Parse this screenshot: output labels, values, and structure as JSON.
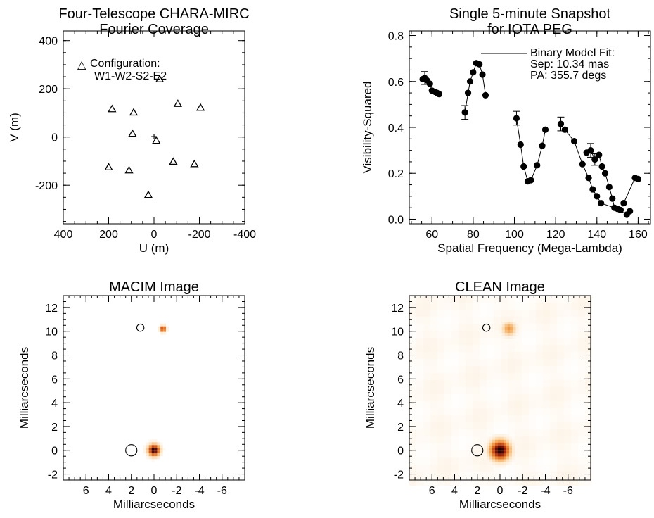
{
  "chart_data": [
    {
      "id": "uv",
      "type": "scatter",
      "title_lines": [
        "Four-Telescope CHARA-MIRC",
        "Fourier Coverage"
      ],
      "xlabel": "U (m)",
      "ylabel": "V (m)",
      "xlim": [
        400,
        -400
      ],
      "ylim": [
        -360,
        440
      ],
      "xticks": [
        400,
        200,
        0,
        -200,
        -400
      ],
      "yticks": [
        400,
        200,
        0,
        -200
      ],
      "legend_marker": "△",
      "legend_lines": [
        "Configuration:",
        "W1-W2-S2-E2"
      ],
      "legend_position": "top-left",
      "center_marker": "+",
      "center": [
        0,
        0
      ],
      "points": [
        {
          "u": -25,
          "v": 240
        },
        {
          "u": -105,
          "v": 138
        },
        {
          "u": -205,
          "v": 122
        },
        {
          "u": 185,
          "v": 116
        },
        {
          "u": 90,
          "v": 102
        },
        {
          "u": 95,
          "v": 14
        },
        {
          "u": -10,
          "v": -15
        },
        {
          "u": -85,
          "v": -102
        },
        {
          "u": -178,
          "v": -112
        },
        {
          "u": 200,
          "v": -125
        },
        {
          "u": 110,
          "v": -138
        },
        {
          "u": 25,
          "v": -240
        }
      ]
    },
    {
      "id": "vis",
      "type": "scatter",
      "title_lines": [
        "Single 5-minute Snapshot",
        "for IOTA PEG"
      ],
      "xlabel": "Spatial Frequency (Mega-Lambda)",
      "ylabel": "Visibility-Squared",
      "xlim": [
        49,
        166
      ],
      "ylim": [
        -0.02,
        0.82
      ],
      "xticks": [
        60,
        80,
        100,
        120,
        140,
        160
      ],
      "yticks": [
        0.0,
        0.2,
        0.4,
        0.6,
        0.8
      ],
      "ytick_labels": [
        "0.0",
        "0.2",
        "0.4",
        "0.6",
        "0.8"
      ],
      "legend_lines": [
        "Binary Model Fit:",
        "Sep: 10.34 mas",
        "PA: 355.7 degs"
      ],
      "legend_position": "top-right",
      "points": [
        [
          55.5,
          0.61
        ],
        [
          56.5,
          0.615
        ],
        [
          57.5,
          0.605
        ],
        [
          59,
          0.59
        ],
        [
          60,
          0.56
        ],
        [
          61.5,
          0.555
        ],
        [
          62.5,
          0.55
        ],
        [
          63.5,
          0.545
        ],
        [
          76,
          0.465
        ],
        [
          77.5,
          0.55
        ],
        [
          78.5,
          0.6
        ],
        [
          80,
          0.64
        ],
        [
          81.5,
          0.68
        ],
        [
          83,
          0.675
        ],
        [
          84.5,
          0.63
        ],
        [
          86,
          0.54
        ],
        [
          101,
          0.44
        ],
        [
          103,
          0.325
        ],
        [
          104.5,
          0.23
        ],
        [
          106.5,
          0.165
        ],
        [
          108,
          0.17
        ],
        [
          111,
          0.235
        ],
        [
          113.5,
          0.32
        ],
        [
          115,
          0.39
        ],
        [
          122.5,
          0.415
        ],
        [
          124.5,
          0.39
        ],
        [
          129,
          0.34
        ],
        [
          133,
          0.24
        ],
        [
          135,
          0.29
        ],
        [
          136,
          0.18
        ],
        [
          137,
          0.3
        ],
        [
          138,
          0.13
        ],
        [
          139,
          0.26
        ],
        [
          140,
          0.1
        ],
        [
          141,
          0.28
        ],
        [
          142,
          0.07
        ],
        [
          142.5,
          0.23
        ],
        [
          144,
          0.2
        ],
        [
          146,
          0.14
        ],
        [
          147.5,
          0.09
        ],
        [
          148.5,
          0.05
        ],
        [
          150,
          0.045
        ],
        [
          151.5,
          0.04
        ],
        [
          153,
          0.07
        ],
        [
          154.5,
          0.02
        ],
        [
          156,
          0.035
        ],
        [
          158.5,
          0.18
        ],
        [
          160,
          0.175
        ]
      ],
      "error_bars": [
        [
          56.5,
          0.615,
          0.028
        ],
        [
          76,
          0.465,
          0.03
        ],
        [
          101,
          0.44,
          0.03
        ],
        [
          122.5,
          0.415,
          0.03
        ],
        [
          137,
          0.3,
          0.03
        ],
        [
          139,
          0.26,
          0.025
        ]
      ],
      "model_segments": [
        [
          [
            55.5,
            0.61
          ],
          [
            56.5,
            0.615
          ],
          [
            57.5,
            0.605
          ],
          [
            59,
            0.59
          ],
          [
            60,
            0.56
          ],
          [
            61.5,
            0.555
          ],
          [
            62.5,
            0.55
          ],
          [
            63.5,
            0.545
          ]
        ],
        [
          [
            76,
            0.465
          ],
          [
            77.5,
            0.55
          ],
          [
            78.5,
            0.6
          ],
          [
            80,
            0.64
          ],
          [
            81.5,
            0.68
          ],
          [
            83,
            0.675
          ],
          [
            84.5,
            0.63
          ],
          [
            86,
            0.54
          ]
        ],
        [
          [
            101,
            0.44
          ],
          [
            103,
            0.325
          ],
          [
            104.5,
            0.23
          ],
          [
            106.5,
            0.165
          ],
          [
            108,
            0.17
          ],
          [
            111,
            0.235
          ],
          [
            113.5,
            0.32
          ],
          [
            115,
            0.39
          ]
        ],
        [
          [
            122.5,
            0.415
          ],
          [
            124.5,
            0.39
          ],
          [
            129,
            0.34
          ],
          [
            133,
            0.24
          ],
          [
            136,
            0.18
          ],
          [
            138,
            0.13
          ],
          [
            140,
            0.1
          ],
          [
            142,
            0.07
          ],
          [
            150,
            0.045
          ],
          [
            154.5,
            0.02
          ],
          [
            156,
            0.035
          ]
        ],
        [
          [
            137,
            0.3
          ],
          [
            139,
            0.26
          ],
          [
            141,
            0.28
          ],
          [
            142.5,
            0.23
          ],
          [
            144,
            0.2
          ],
          [
            146,
            0.14
          ],
          [
            147.5,
            0.09
          ],
          [
            148.5,
            0.05
          ],
          [
            151.5,
            0.04
          ],
          [
            153,
            0.07
          ],
          [
            158.5,
            0.18
          ],
          [
            160,
            0.175
          ]
        ]
      ]
    },
    {
      "id": "macim",
      "type": "heatmap",
      "title_lines": [
        "MACIM Image"
      ],
      "xlabel": "Milliarcseconds",
      "ylabel": "Milliarcseconds",
      "xlim": [
        8,
        -8
      ],
      "ylim": [
        -2.5,
        13
      ],
      "xticks": [
        6,
        4,
        2,
        0,
        -2,
        -4,
        -6
      ],
      "yticks": [
        -2,
        0,
        2,
        4,
        6,
        8,
        10,
        12
      ],
      "circles": [
        {
          "x": 2.0,
          "y": 0.0,
          "r": 0.5
        },
        {
          "x": 1.2,
          "y": 10.3,
          "r": 0.32
        }
      ],
      "sources": [
        {
          "x": 0.0,
          "y": 0.0,
          "sigma": 0.36,
          "peak": 1.0
        },
        {
          "x": -0.8,
          "y": 10.2,
          "sigma": 0.2,
          "peak": 0.75
        }
      ],
      "background_ripple": false
    },
    {
      "id": "clean",
      "type": "heatmap",
      "title_lines": [
        "CLEAN Image"
      ],
      "xlabel": "Milliarcseconds",
      "ylabel": "Milliarcseconds",
      "xlim": [
        8,
        -8
      ],
      "ylim": [
        -2.5,
        13
      ],
      "xticks": [
        6,
        4,
        2,
        0,
        -2,
        -4,
        -6
      ],
      "yticks": [
        -2,
        0,
        2,
        4,
        6,
        8,
        10,
        12
      ],
      "circles": [
        {
          "x": 2.0,
          "y": 0.0,
          "r": 0.5
        },
        {
          "x": 1.2,
          "y": 10.3,
          "r": 0.32
        }
      ],
      "sources": [
        {
          "x": 0.0,
          "y": 0.0,
          "sigma": 0.6,
          "peak": 1.0
        },
        {
          "x": -0.8,
          "y": 10.2,
          "sigma": 0.42,
          "peak": 0.42
        }
      ],
      "background_ripple": true
    }
  ]
}
